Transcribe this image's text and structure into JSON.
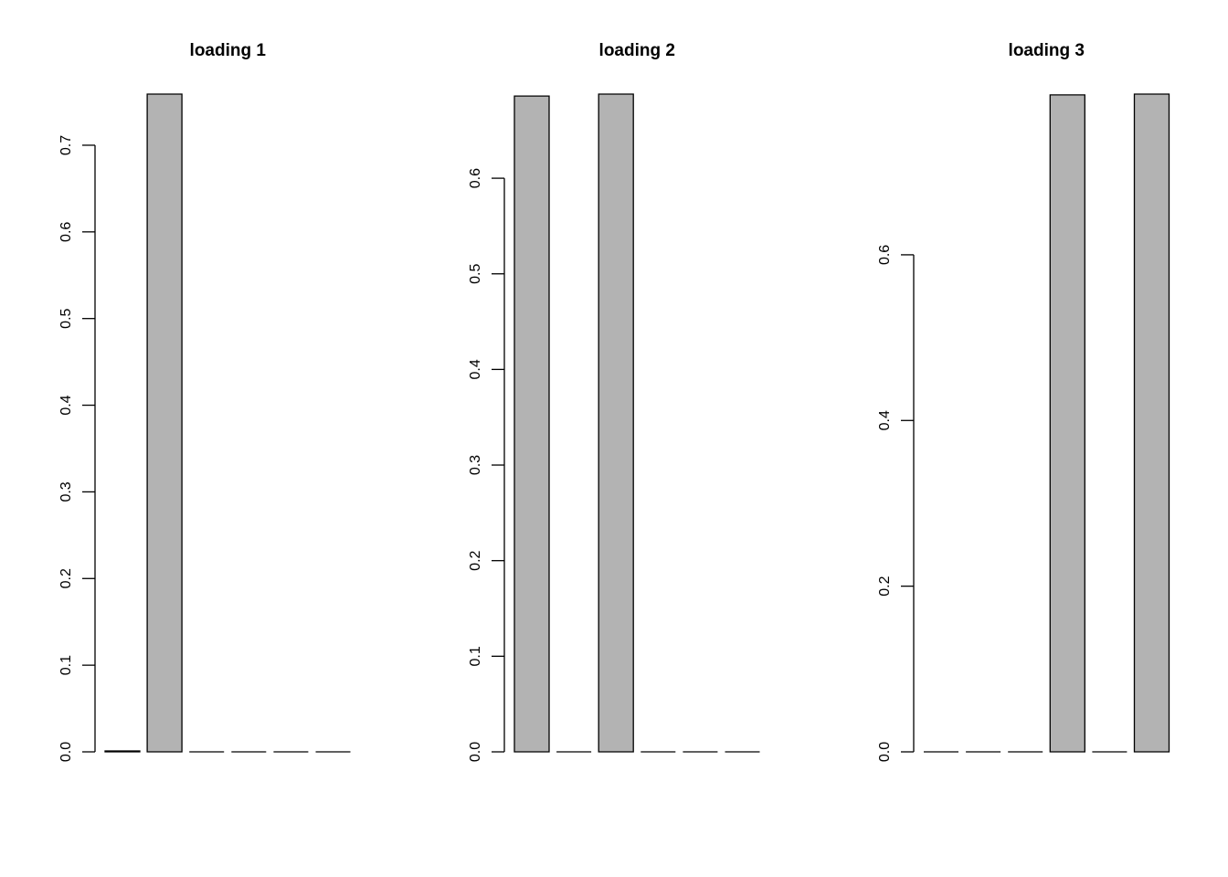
{
  "chart_data": [
    {
      "type": "bar",
      "title": "loading 1",
      "values": [
        0.001,
        0.759,
        0,
        0,
        0,
        0
      ],
      "color": "#b3b3b3",
      "ylim": [
        0,
        0.759
      ],
      "yticks": [
        {
          "value": 0,
          "label": "0.0"
        },
        0.1,
        0.2,
        0.3,
        0.4,
        0.5,
        0.6,
        0.7
      ]
    },
    {
      "type": "bar",
      "title": "loading 2",
      "values": [
        0.686,
        0,
        0.688,
        0,
        0,
        0
      ],
      "color": "#b3b3b3",
      "ylim": [
        0,
        0.688
      ],
      "yticks": [
        {
          "value": 0,
          "label": "0.0"
        },
        0.1,
        0.2,
        0.3,
        0.4,
        0.5,
        0.6
      ]
    },
    {
      "type": "bar",
      "title": "loading 3",
      "values": [
        0,
        0,
        0,
        0.793,
        0,
        0.794
      ],
      "color": "#b3b3b3",
      "ylim": [
        0,
        0.794
      ],
      "yticks": [
        {
          "value": 0,
          "label": "0.0"
        },
        0.2,
        0.4,
        0.6
      ]
    }
  ]
}
